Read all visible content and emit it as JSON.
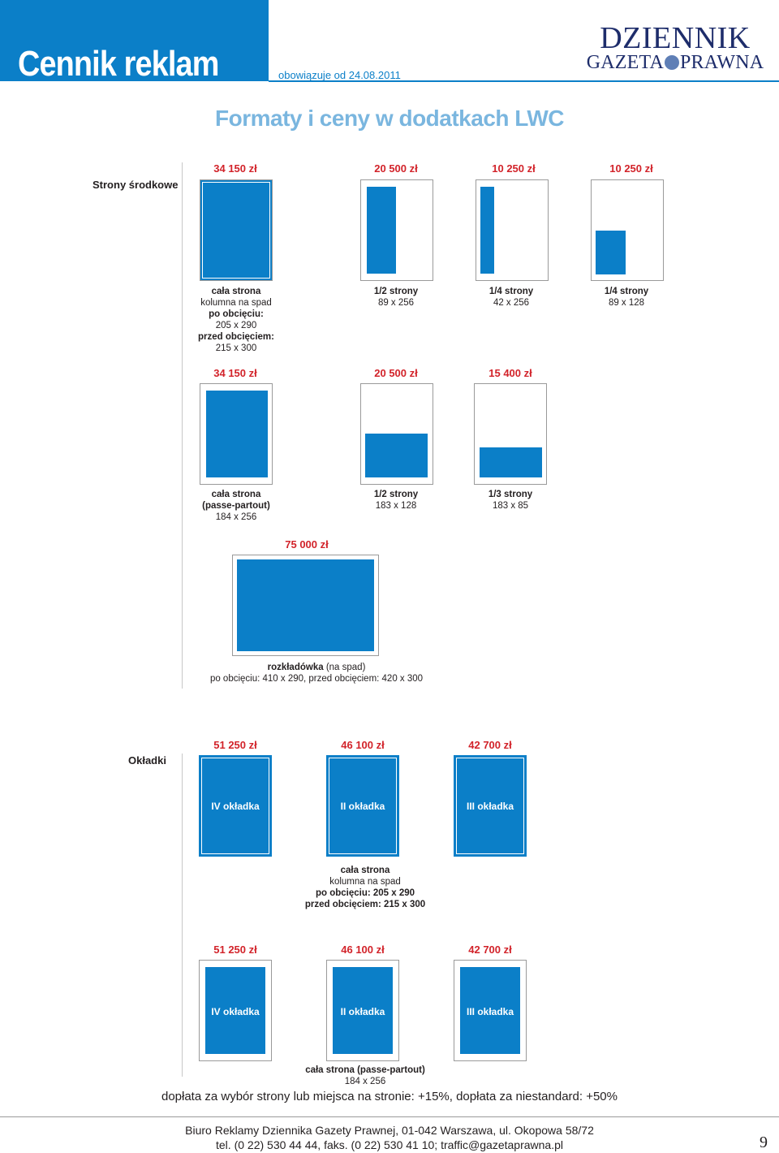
{
  "header": {
    "title": "Cennik reklam",
    "valid_from": "obowiązuje od 24.08.2011",
    "logo_line1": "DZIENNIK",
    "logo_line2_a": "GAZETA",
    "logo_line2_b": "PRAWNA"
  },
  "subtitle": "Formaty i ceny w dodatkach LWC",
  "section_inner": {
    "label": "Strony środkowe",
    "row1": [
      {
        "price": "34 150 zł",
        "d1": "cała strona",
        "d2": "kolumna na spad",
        "d3": "po obcięciu:",
        "d4": "205 x 290",
        "d5": "przed obcięciem:",
        "d6": "215 x 300"
      },
      {
        "price": "20 500 zł",
        "d1": "1/2 strony",
        "d2": "89 x 256"
      },
      {
        "price": "10 250 zł",
        "d1": "1/4 strony",
        "d2": "42 x 256"
      },
      {
        "price": "10 250 zł",
        "d1": "1/4 strony",
        "d2": "89 x 128"
      }
    ],
    "row2": [
      {
        "price": "34 150 zł",
        "d1": "cała strona",
        "d2": "(passe-partout)",
        "d3": "184 x 256"
      },
      {
        "price": "20 500 zł",
        "d1": "1/2 strony",
        "d2": "183 x 128"
      },
      {
        "price": "15 400 zł",
        "d1": "1/3 strony",
        "d2": "183 x 85"
      }
    ],
    "spread": {
      "price": "75 000 zł",
      "d1_bold": "rozkładówka",
      "d1_rest": " (na spad)",
      "d2": "po obcięciu: 410 x 290, przed obcięciem: 420 x 300"
    }
  },
  "section_covers": {
    "label": "Okładki",
    "row1": [
      {
        "price": "51 250 zł",
        "name": "IV okładka"
      },
      {
        "price": "46 100 zł",
        "name": "II okładka"
      },
      {
        "price": "42 700 zł",
        "name": "III okładka"
      }
    ],
    "row1_desc": {
      "d1": "cała strona",
      "d2": "kolumna na spad",
      "d3": "po obcięciu: 205 x 290",
      "d4": "przed obcięciem: 215 x 300"
    },
    "row2": [
      {
        "price": "51 250 zł",
        "name": "IV okładka"
      },
      {
        "price": "46 100 zł",
        "name": "II okładka"
      },
      {
        "price": "42 700 zł",
        "name": "III okładka"
      }
    ],
    "row2_desc": {
      "d1": "cała strona (passe-partout)",
      "d2": "184 x 256"
    }
  },
  "note": "dopłata za wybór strony lub miejsca na stronie: +15%, dopłata za niestandard: +50%",
  "footer": {
    "line1": "Biuro Reklamy Dziennika Gazety Prawnej, 01-042 Warszawa, ul. Okopowa 58/72",
    "line2": "tel. (0 22) 530 44 44, faks. (0 22) 530 41 10; traffic@gazetaprawna.pl",
    "page_number": "9"
  },
  "colors": {
    "brand_blue": "#0b7fc8",
    "price_red": "#d2232a",
    "subtitle_blue": "#7ab6df"
  }
}
